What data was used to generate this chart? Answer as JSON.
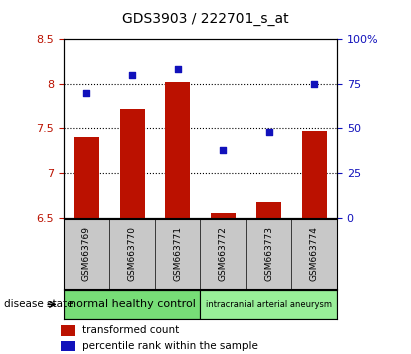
{
  "title": "GDS3903 / 222701_s_at",
  "samples": [
    "GSM663769",
    "GSM663770",
    "GSM663771",
    "GSM663772",
    "GSM663773",
    "GSM663774"
  ],
  "bar_values": [
    7.4,
    7.72,
    8.02,
    6.55,
    6.68,
    7.47
  ],
  "percentile_values": [
    70,
    80,
    83,
    38,
    48,
    75
  ],
  "ylim_left": [
    6.5,
    8.5
  ],
  "ylim_right": [
    0,
    100
  ],
  "yticks_left": [
    6.5,
    7.0,
    7.5,
    8.0,
    8.5
  ],
  "yticks_right": [
    0,
    25,
    50,
    75,
    100
  ],
  "ytick_labels_left": [
    "6.5",
    "7",
    "7.5",
    "8",
    "8.5"
  ],
  "ytick_labels_right": [
    "0",
    "25",
    "50",
    "75",
    "100%"
  ],
  "hlines": [
    7.0,
    7.5,
    8.0
  ],
  "bar_color": "#bb1100",
  "dot_color": "#1111bb",
  "bar_width": 0.55,
  "group1_label": "normal healthy control",
  "group2_label": "intracranial arterial aneurysm",
  "group1_color": "#77dd77",
  "group2_color": "#99ee99",
  "disease_state_label": "disease state",
  "legend_bar_label": "transformed count",
  "legend_dot_label": "percentile rank within the sample",
  "x_label_area_color": "#c8c8c8",
  "title_fontsize": 10,
  "tick_fontsize": 8,
  "label_fontsize": 7
}
